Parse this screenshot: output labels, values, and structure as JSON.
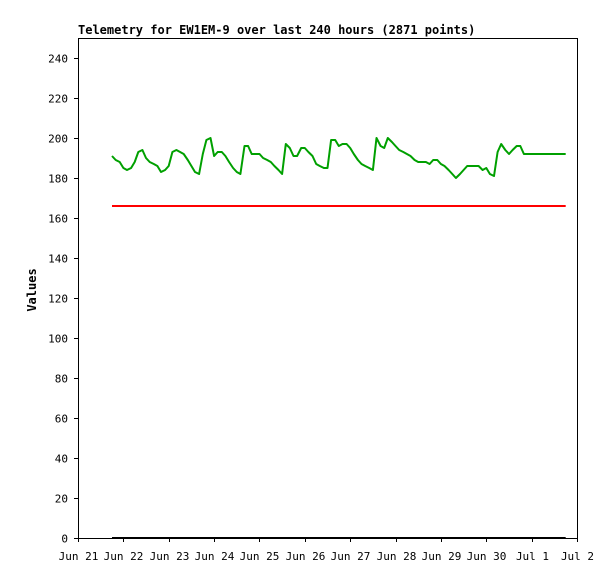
{
  "chart_data": {
    "type": "line",
    "title": "Telemetry for EW1EM-9 over last 240 hours (2871 points)",
    "xlabel": "",
    "ylabel": "Values",
    "ylim": [
      0,
      250
    ],
    "xlim_days": [
      0,
      11
    ],
    "y_ticks": [
      0,
      20,
      40,
      60,
      80,
      100,
      120,
      140,
      160,
      180,
      200,
      220,
      240
    ],
    "x_ticks": [
      {
        "day": 0,
        "label": "Jun 21"
      },
      {
        "day": 1,
        "label": "Jun 22"
      },
      {
        "day": 2,
        "label": "Jun 23"
      },
      {
        "day": 3,
        "label": "Jun 24"
      },
      {
        "day": 4,
        "label": "Jun 25"
      },
      {
        "day": 5,
        "label": "Jun 26"
      },
      {
        "day": 6,
        "label": "Jun 27"
      },
      {
        "day": 7,
        "label": "Jun 28"
      },
      {
        "day": 8,
        "label": "Jun 29"
      },
      {
        "day": 9,
        "label": "Jun 30"
      },
      {
        "day": 10,
        "label": "Jul 1"
      },
      {
        "day": 11,
        "label": "Jul 2"
      }
    ],
    "grid": false,
    "legend": "none",
    "series": [
      {
        "color": "#00a000",
        "x": [
          0.75,
          0.83,
          0.92,
          1.0,
          1.08,
          1.17,
          1.25,
          1.33,
          1.42,
          1.5,
          1.58,
          1.67,
          1.75,
          1.83,
          1.92,
          2.0,
          2.08,
          2.17,
          2.25,
          2.33,
          2.42,
          2.5,
          2.58,
          2.67,
          2.75,
          2.83,
          2.92,
          3.0,
          3.08,
          3.17,
          3.25,
          3.33,
          3.42,
          3.5,
          3.58,
          3.67,
          3.75,
          3.83,
          3.92,
          4.0,
          4.08,
          4.17,
          4.25,
          4.33,
          4.42,
          4.5,
          4.58,
          4.67,
          4.75,
          4.83,
          4.92,
          5.0,
          5.08,
          5.17,
          5.25,
          5.33,
          5.42,
          5.5,
          5.58,
          5.67,
          5.75,
          5.83,
          5.92,
          6.0,
          6.08,
          6.17,
          6.25,
          6.33,
          6.42,
          6.5,
          6.58,
          6.67,
          6.75,
          6.83,
          6.92,
          7.0,
          7.08,
          7.17,
          7.25,
          7.33,
          7.42,
          7.5,
          7.58,
          7.67,
          7.75,
          7.83,
          7.92,
          8.0,
          8.08,
          8.17,
          8.25,
          8.33,
          8.42,
          8.5,
          8.58,
          8.67,
          8.75,
          8.83,
          8.92,
          9.0,
          9.08,
          9.17,
          9.25,
          9.33,
          9.42,
          9.5,
          9.58,
          9.67,
          9.75,
          9.83,
          9.92,
          10.0,
          10.08,
          10.17,
          10.25,
          10.33,
          10.42,
          10.5,
          10.58,
          10.67,
          10.75
        ],
        "y": [
          191,
          189,
          188,
          185,
          184,
          185,
          188,
          193,
          194,
          190,
          188,
          187,
          186,
          183,
          184,
          186,
          193,
          194,
          193,
          192,
          189,
          186,
          183,
          182,
          192,
          199,
          200,
          191,
          193,
          193,
          191,
          188,
          185,
          183,
          182,
          196,
          196,
          192,
          192,
          192,
          190,
          189,
          188,
          186,
          184,
          182,
          197,
          195,
          191,
          191,
          195,
          195,
          193,
          191,
          187,
          186,
          185,
          185,
          199,
          199,
          196,
          197,
          197,
          195,
          192,
          189,
          187,
          186,
          185,
          184,
          200,
          196,
          195,
          200,
          198,
          196,
          194,
          193,
          192,
          191,
          189,
          188,
          188,
          188,
          187,
          189,
          189,
          187,
          186,
          184,
          182,
          180,
          182,
          184,
          186,
          186,
          186,
          186,
          184,
          185,
          182,
          181,
          193,
          197,
          194,
          192,
          194,
          196,
          196,
          192,
          192,
          192,
          192,
          192,
          192,
          192,
          192,
          192,
          192,
          192,
          192
        ]
      },
      {
        "color": "#ff0000",
        "x": [
          0.75,
          10.75
        ],
        "y": [
          166,
          166
        ]
      },
      {
        "color": "#000000",
        "x": [
          0.75,
          10.75
        ],
        "y": [
          0,
          0
        ]
      }
    ]
  }
}
